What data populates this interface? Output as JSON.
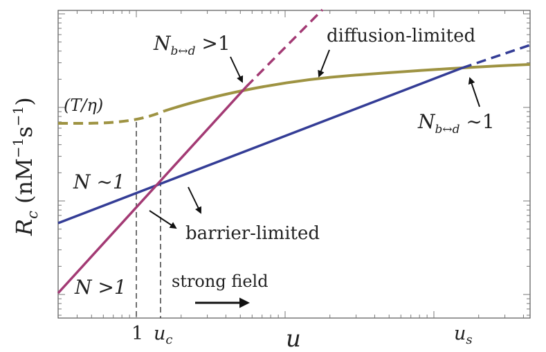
{
  "chart_data": {
    "type": "line",
    "title": "",
    "xlabel": "u",
    "ylabel": "R_c (nM⁻¹s⁻¹)",
    "x_tick_labels": [
      "1",
      "u_c",
      "u_s"
    ],
    "x_scale": "log",
    "y_scale": "log",
    "grid": false,
    "legend": "none",
    "series": [
      {
        "color": "#9e9342",
        "style": "dashed-then-solid",
        "x": [
          0.25,
          0.55,
          1,
          1.15,
          1.4,
          2,
          3,
          5,
          8,
          12,
          20,
          40,
          70
        ],
        "y": [
          0.6,
          0.59,
          0.6,
          0.62,
          0.66,
          0.74,
          0.81,
          0.86,
          0.88,
          0.9,
          0.92,
          0.95,
          0.97
        ]
      },
      {
        "color": "#a33a74",
        "style": "solid-then-dashed",
        "x": [
          0.02,
          0.1,
          0.5,
          1,
          1.3,
          2,
          3,
          4
        ],
        "y": [
          0.05,
          0.11,
          0.3,
          0.46,
          0.55,
          0.84,
          1.2,
          1.5
        ]
      },
      {
        "color": "#343d96",
        "style": "solid-then-dashed",
        "x": [
          0.02,
          0.1,
          0.5,
          1,
          1.3,
          2,
          5,
          10,
          30,
          60,
          100
        ],
        "y": [
          0.12,
          0.2,
          0.3,
          0.41,
          0.46,
          0.52,
          0.65,
          0.75,
          0.9,
          0.95,
          1.0
        ]
      }
    ],
    "annotations": [
      {
        "text": "N_{b↔d} > 1"
      },
      {
        "text": "diffusion-limited"
      },
      {
        "text": "(T/η)"
      },
      {
        "text": "N_{b↔d} ∼ 1"
      },
      {
        "text": "N ∼ 1"
      },
      {
        "text": "barrier-limited"
      },
      {
        "text": "N > 1"
      },
      {
        "text": "strong field"
      }
    ]
  },
  "labels": {
    "y_main": "R",
    "y_sub": "c",
    "y_units_open": " (nM",
    "y_exp1": "−1",
    "y_s": "s",
    "y_exp2": "−1",
    "y_close": ")",
    "x_main": "u",
    "tick_one": "1",
    "tick_uc_main": "u",
    "tick_uc_sub": "c",
    "tick_us_main": "u",
    "tick_us_sub": "s",
    "nbd_gt_main": "N",
    "nbd_gt_sub": "b↔d",
    "nbd_gt_rel": " >1",
    "diffusion": "diffusion-limited",
    "t_eta": "(T/η)",
    "nbd_sim_main": "N",
    "nbd_sim_sub": "b↔d",
    "nbd_sim_rel": " ∼1",
    "n_sim": "N ∼1",
    "barrier": "barrier-limited",
    "n_gt": "N >1",
    "strong_field": "strong field"
  }
}
